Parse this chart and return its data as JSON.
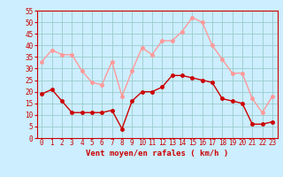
{
  "title": "",
  "xlabel": "Vent moyen/en rafales ( km/h )",
  "ylabel": "",
  "bg_color": "#cceeff",
  "grid_color": "#99cccc",
  "mean_color": "#cc0000",
  "gust_color": "#ff9999",
  "hours": [
    0,
    1,
    2,
    3,
    4,
    5,
    6,
    7,
    8,
    9,
    10,
    11,
    12,
    13,
    14,
    15,
    16,
    17,
    18,
    19,
    20,
    21,
    22,
    23
  ],
  "mean_values": [
    19,
    21,
    16,
    11,
    11,
    11,
    11,
    12,
    4,
    16,
    20,
    20,
    22,
    27,
    27,
    26,
    25,
    24,
    17,
    16,
    15,
    6,
    6,
    7
  ],
  "gust_values": [
    33,
    38,
    36,
    36,
    29,
    24,
    23,
    33,
    18,
    29,
    39,
    36,
    42,
    42,
    46,
    52,
    50,
    40,
    34,
    28,
    28,
    17,
    11,
    18
  ],
  "ylim": [
    0,
    55
  ],
  "yticks": [
    0,
    5,
    10,
    15,
    20,
    25,
    30,
    35,
    40,
    45,
    50,
    55
  ],
  "marker_size": 2.5,
  "line_width": 1.0,
  "tick_fontsize": 5.5,
  "xlabel_fontsize": 6.5
}
